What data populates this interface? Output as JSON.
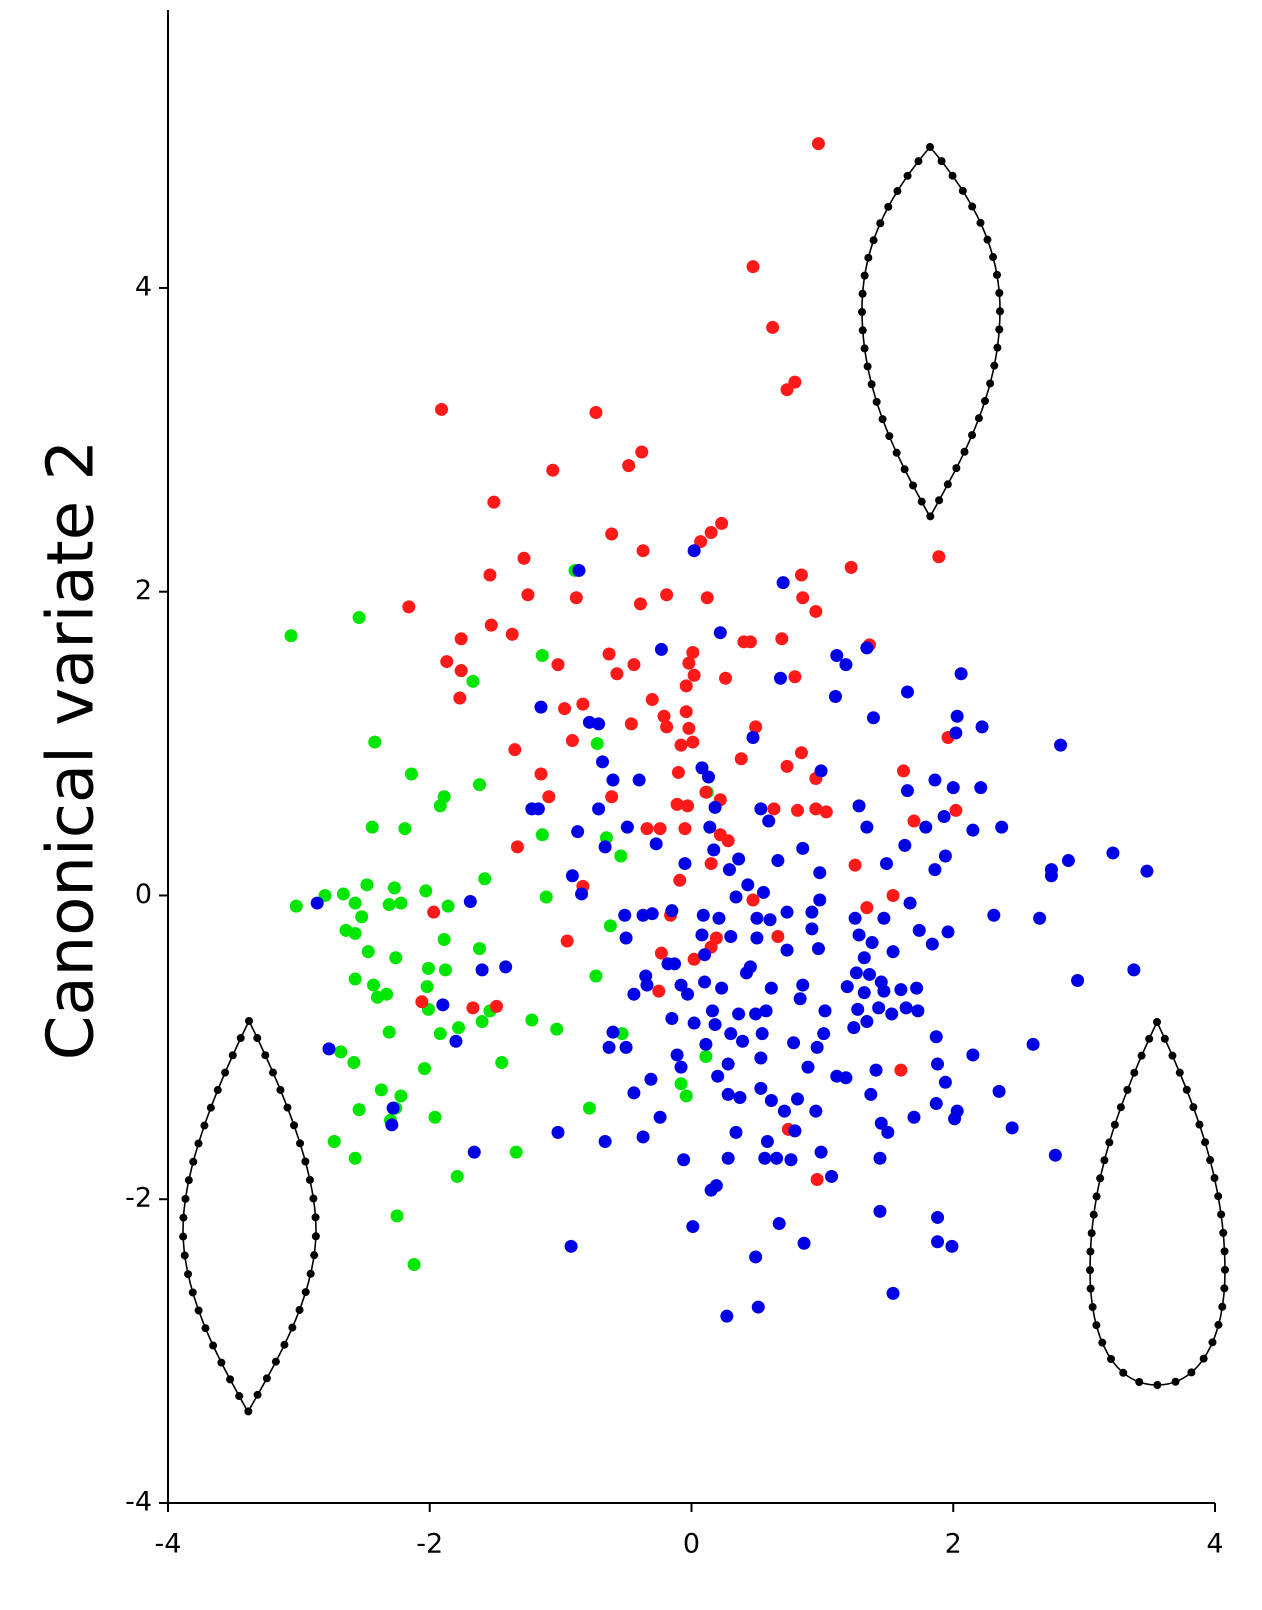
{
  "chart_data": {
    "type": "scatter",
    "y_label": "Canonical variate 2",
    "xlim": [
      -4,
      4
    ],
    "ylim": [
      -4,
      5.83
    ],
    "xticks": [
      -4,
      -2,
      0,
      2,
      4
    ],
    "yticks": [
      -4,
      -2,
      0,
      2,
      4
    ],
    "grid": false,
    "series": [
      {
        "color": "#00e600",
        "x": [
          -3.06,
          -2.54,
          -0.89,
          -1.76,
          -1.67,
          -1.14,
          -2.42,
          -0.72,
          -2.14,
          -1.89,
          -1.92,
          -1.62,
          -2.44,
          -2.19,
          0.12,
          -1.14,
          -0.65,
          -0.54,
          -1.58,
          -3.02,
          -2.8,
          -2.66,
          -2.48,
          -2.27,
          -2.03,
          -1.11,
          -2.57,
          -2.22,
          -2.52,
          -2.31,
          -1.86,
          -2.64,
          -2.57,
          -0.62,
          -1.89,
          -2.47,
          -2.26,
          -2.01,
          -2.02,
          -1.62,
          -1.88,
          -0.73,
          -2.57,
          -2.43,
          -2.33,
          -2.4,
          -2.01,
          -1.54,
          -1.6,
          -1.78,
          -1.92,
          -1.22,
          -1.03,
          -0.53,
          -2.68,
          -2.31,
          -2.58,
          -1.45,
          -0.08,
          0.11,
          -2.04,
          -2.37,
          -0.04,
          -2.22,
          -2.26,
          -0.78,
          -1.96,
          -2.54,
          -2.3,
          -2.73,
          -1.34,
          -2.57,
          -1.79,
          -2.25,
          -2.12
        ],
        "y": [
          1.71,
          1.83,
          2.14,
          1.48,
          1.41,
          1.58,
          1.01,
          1.0,
          0.8,
          0.65,
          0.59,
          0.73,
          0.45,
          0.44,
          0.68,
          0.4,
          0.38,
          0.26,
          0.11,
          -0.07,
          0.0,
          0.01,
          0.07,
          0.05,
          0.03,
          -0.01,
          -0.05,
          -0.05,
          -0.14,
          -0.06,
          -0.07,
          -0.23,
          -0.25,
          -0.2,
          -0.29,
          -0.37,
          -0.41,
          -0.48,
          -0.6,
          -0.35,
          -0.49,
          -0.53,
          -0.55,
          -0.59,
          -0.65,
          -0.67,
          -0.75,
          -0.76,
          -0.83,
          -0.87,
          -0.91,
          -0.82,
          -0.88,
          -0.91,
          -1.03,
          -0.9,
          -1.1,
          -1.1,
          -1.24,
          -1.06,
          -1.14,
          -1.28,
          -1.32,
          -1.32,
          -1.4,
          -1.4,
          -1.46,
          -1.41,
          -1.48,
          -1.62,
          -1.69,
          -1.73,
          -1.85,
          -2.11,
          -2.43
        ]
      },
      {
        "color": "#ff1a1a",
        "x": [
          0.97,
          0.47,
          0.62,
          0.79,
          0.73,
          -1.91,
          -0.73,
          -0.38,
          -0.48,
          -1.06,
          -1.51,
          0.23,
          0.15,
          0.07,
          -0.61,
          -0.37,
          -1.28,
          1.89,
          1.22,
          -1.54,
          0.84,
          -1.25,
          -0.88,
          -0.39,
          -0.19,
          0.12,
          0.85,
          0.95,
          -2.16,
          -1.53,
          -1.37,
          -1.76,
          0.4,
          0.45,
          0.69,
          1.36,
          -1.87,
          -1.76,
          -1.02,
          -0.63,
          -0.44,
          -0.57,
          0.01,
          -0.02,
          0.02,
          -0.04,
          0.26,
          0.79,
          -1.77,
          -0.97,
          -0.83,
          -0.3,
          -0.21,
          -0.19,
          -0.04,
          -0.02,
          0.49,
          -0.46,
          -0.91,
          -0.08,
          0.01,
          1.96,
          -1.35,
          0.84,
          0.38,
          -1.15,
          -0.1,
          1.62,
          0.73,
          0.95,
          -1.09,
          -0.61,
          0.11,
          0.22,
          -0.11,
          -0.03,
          0.63,
          0.81,
          0.95,
          1.03,
          2.02,
          1.7,
          -0.34,
          -0.24,
          -0.05,
          0.22,
          0.28,
          -1.33,
          1.25,
          0.15,
          -0.83,
          -0.09,
          1.54,
          0.47,
          -1.97,
          1.34,
          -0.16,
          -0.95,
          0.66,
          0.19,
          0.15,
          -0.23,
          -0.25,
          -2.06,
          -1.49,
          -1.67,
          0.02,
          1.6,
          0.74,
          0.96
        ],
        "y": [
          4.95,
          4.14,
          3.74,
          3.38,
          3.33,
          3.2,
          3.18,
          2.92,
          2.83,
          2.8,
          2.59,
          2.45,
          2.39,
          2.33,
          2.38,
          2.27,
          2.22,
          2.23,
          2.16,
          2.11,
          2.11,
          1.98,
          1.96,
          1.92,
          1.98,
          1.96,
          1.96,
          1.87,
          1.9,
          1.78,
          1.72,
          1.69,
          1.67,
          1.67,
          1.69,
          1.65,
          1.54,
          1.48,
          1.52,
          1.59,
          1.52,
          1.46,
          1.6,
          1.53,
          1.45,
          1.38,
          1.43,
          1.44,
          1.3,
          1.23,
          1.26,
          1.29,
          1.18,
          1.11,
          1.21,
          1.1,
          1.11,
          1.13,
          1.02,
          0.99,
          1.01,
          1.04,
          0.96,
          0.94,
          0.9,
          0.8,
          0.81,
          0.82,
          0.85,
          0.77,
          0.65,
          0.65,
          0.68,
          0.63,
          0.6,
          0.59,
          0.57,
          0.56,
          0.57,
          0.55,
          0.56,
          0.49,
          0.44,
          0.44,
          0.44,
          0.4,
          0.36,
          0.32,
          0.2,
          0.21,
          0.06,
          0.1,
          0.0,
          -0.03,
          -0.11,
          -0.08,
          -0.13,
          -0.3,
          -0.27,
          -0.28,
          -0.34,
          -0.38,
          -0.63,
          -0.7,
          -0.73,
          -0.74,
          -0.42,
          -1.15,
          -1.54,
          -1.87
        ]
      },
      {
        "color": "#0000e6",
        "x": [
          0.02,
          -0.86,
          0.7,
          0.22,
          1.34,
          -0.23,
          1.11,
          1.18,
          2.06,
          0.68,
          1.65,
          1.1,
          -1.15,
          2.03,
          2.22,
          2.02,
          1.39,
          -0.78,
          -0.71,
          0.47,
          2.82,
          -0.6,
          -0.4,
          -0.68,
          0.08,
          0.13,
          1.86,
          2.0,
          0.99,
          1.65,
          2.21,
          1.28,
          -1.22,
          -1.17,
          -0.71,
          0.18,
          0.53,
          0.59,
          1.93,
          2.15,
          1.79,
          2.37,
          1.34,
          -0.49,
          -0.87,
          0.14,
          -0.27,
          -0.66,
          0.17,
          0.85,
          0.36,
          0.66,
          1.63,
          1.94,
          3.22,
          3.48,
          2.88,
          2.75,
          2.75,
          1.86,
          1.49,
          0.29,
          -0.05,
          -0.91,
          0.98,
          0.43,
          -2.86,
          -1.69,
          -0.84,
          0.34,
          0.55,
          0.98,
          1.67,
          2.31,
          2.66,
          -0.37,
          -0.3,
          -0.15,
          -0.51,
          0.09,
          0.21,
          0.73,
          0.92,
          0.5,
          0.6,
          1.25,
          1.47,
          1.74,
          1.96,
          -0.5,
          0.08,
          0.3,
          0.5,
          0.92,
          1.28,
          1.38,
          1.54,
          1.84,
          -0.18,
          -0.13,
          0.1,
          0.73,
          0.97,
          1.32,
          0.42,
          0.45,
          -1.6,
          -1.42,
          1.26,
          1.36,
          3.38,
          2.95,
          -0.35,
          -0.34,
          -0.08,
          0.1,
          0.23,
          0.61,
          0.85,
          1.19,
          1.45,
          1.47,
          1.6,
          1.72,
          1.32,
          -0.44,
          -0.03,
          0.83,
          -1.9,
          0.16,
          0.36,
          0.49,
          0.57,
          1.02,
          1.27,
          1.43,
          1.53,
          1.64,
          1.73,
          -0.15,
          0.02,
          0.18,
          1.24,
          1.34,
          1.01,
          0.54,
          0.3,
          -1.8,
          -0.63,
          -0.5,
          0.11,
          0.39,
          0.78,
          0.96,
          1.87,
          -2.77,
          2.15,
          2.61,
          -0.6,
          -0.11,
          -0.08,
          0.28,
          0.53,
          1.11,
          1.18,
          1.41,
          1.88,
          -0.31,
          0.2,
          0.89,
          1.94,
          -0.44,
          0.28,
          0.53,
          0.61,
          0.37,
          0.81,
          1.37,
          2.35,
          -2.28,
          0.71,
          0.95,
          -0.24,
          1.87,
          2.03,
          1.45,
          1.5,
          1.7,
          2.01,
          2.45,
          0.34,
          0.79,
          -1.02,
          -0.66,
          -0.37,
          0.58,
          0.99,
          0.56,
          0.65,
          0.76,
          -1.66,
          -0.06,
          0.28,
          1.44,
          2.78,
          1.07,
          0.19,
          0.15,
          -2.29,
          1.44,
          1.88,
          0.67,
          0.01,
          0.86,
          1.88,
          1.99,
          -0.92,
          0.49,
          1.54,
          0.51,
          0.27
        ],
        "y": [
          2.27,
          2.14,
          2.06,
          1.73,
          1.63,
          1.62,
          1.58,
          1.52,
          1.46,
          1.43,
          1.34,
          1.31,
          1.24,
          1.18,
          1.11,
          1.07,
          1.17,
          1.14,
          1.13,
          1.04,
          0.99,
          0.76,
          0.76,
          0.88,
          0.84,
          0.78,
          0.76,
          0.71,
          0.82,
          0.69,
          0.71,
          0.59,
          0.57,
          0.57,
          0.57,
          0.58,
          0.57,
          0.49,
          0.52,
          0.43,
          0.45,
          0.45,
          0.45,
          0.45,
          0.42,
          0.45,
          0.34,
          0.32,
          0.3,
          0.31,
          0.24,
          0.23,
          0.33,
          0.26,
          0.28,
          0.16,
          0.23,
          0.17,
          0.13,
          0.17,
          0.21,
          0.17,
          0.21,
          0.13,
          0.15,
          0.07,
          -0.05,
          -0.04,
          0.01,
          -0.01,
          0.02,
          -0.03,
          -0.05,
          -0.13,
          -0.15,
          -0.13,
          -0.12,
          -0.1,
          -0.13,
          -0.13,
          -0.15,
          -0.11,
          -0.11,
          -0.15,
          -0.16,
          -0.15,
          -0.15,
          -0.23,
          -0.24,
          -0.28,
          -0.26,
          -0.27,
          -0.28,
          -0.22,
          -0.26,
          -0.31,
          -0.37,
          -0.32,
          -0.45,
          -0.45,
          -0.39,
          -0.36,
          -0.35,
          -0.41,
          -0.51,
          -0.47,
          -0.49,
          -0.47,
          -0.51,
          -0.52,
          -0.49,
          -0.56,
          -0.53,
          -0.59,
          -0.59,
          -0.57,
          -0.61,
          -0.61,
          -0.59,
          -0.6,
          -0.57,
          -0.63,
          -0.62,
          -0.61,
          -0.64,
          -0.65,
          -0.65,
          -0.68,
          -0.72,
          -0.76,
          -0.78,
          -0.78,
          -0.76,
          -0.76,
          -0.75,
          -0.74,
          -0.78,
          -0.74,
          -0.76,
          -0.81,
          -0.84,
          -0.85,
          -0.87,
          -0.83,
          -0.91,
          -0.91,
          -0.91,
          -0.96,
          -1.0,
          -1.0,
          -0.98,
          -0.96,
          -0.97,
          -1.0,
          -0.93,
          -1.01,
          -1.05,
          -0.98,
          -0.9,
          -1.05,
          -1.13,
          -1.11,
          -1.07,
          -1.19,
          -1.2,
          -1.15,
          -1.11,
          -1.21,
          -1.19,
          -1.13,
          -1.23,
          -1.3,
          -1.31,
          -1.27,
          -1.35,
          -1.33,
          -1.34,
          -1.31,
          -1.29,
          -1.4,
          -1.42,
          -1.42,
          -1.46,
          -1.37,
          -1.42,
          -1.5,
          -1.56,
          -1.46,
          -1.47,
          -1.53,
          -1.56,
          -1.55,
          -1.56,
          -1.62,
          -1.59,
          -1.62,
          -1.69,
          -1.73,
          -1.73,
          -1.74,
          -1.69,
          -1.74,
          -1.73,
          -1.73,
          -1.71,
          -1.85,
          -1.91,
          -1.94,
          -1.51,
          -2.08,
          -2.12,
          -2.16,
          -2.18,
          -2.29,
          -2.28,
          -2.31,
          -2.31,
          -2.38,
          -2.62,
          -2.71,
          -2.77
        ]
      }
    ]
  }
}
